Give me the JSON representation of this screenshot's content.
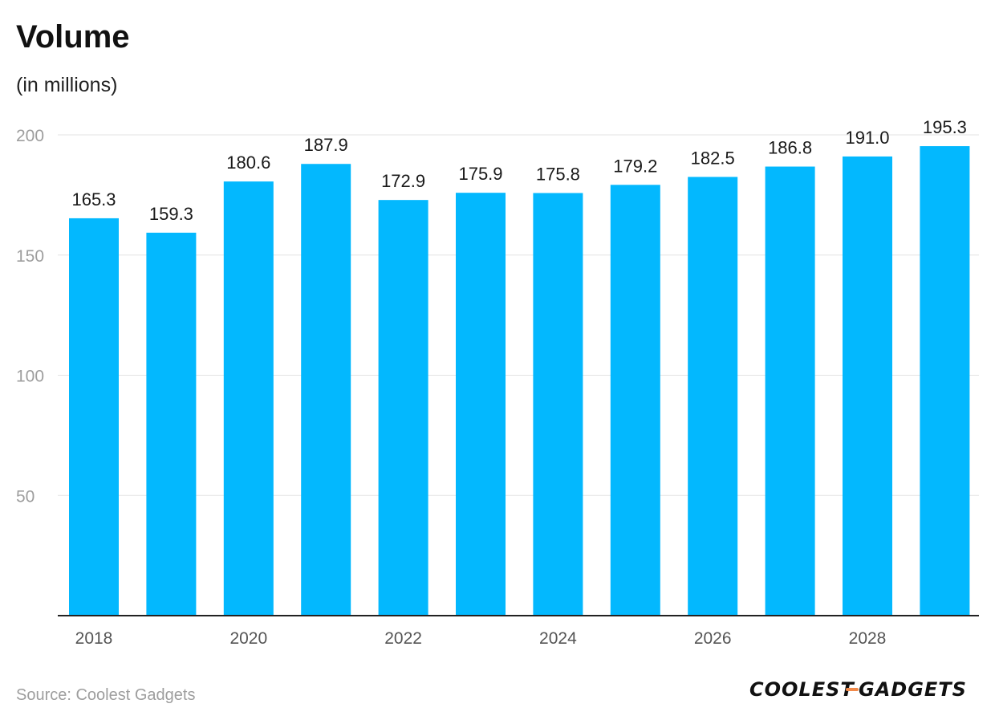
{
  "header": {
    "title": "Volume",
    "subtitle": "(in millions)"
  },
  "footer": {
    "source": "Source: Coolest Gadgets",
    "logo_text": "COOLEST-GADGETS"
  },
  "colors": {
    "bar": "#03b8fe",
    "grid": "#e3e3e3",
    "axis": "#222222",
    "tick_label": "#9e9e9e",
    "x_label": "#555555",
    "value_label": "#1a1a1a",
    "logo_accent": "#f28a4a"
  },
  "chart_data": {
    "type": "bar",
    "title": "Volume",
    "subtitle": "(in millions)",
    "categories": [
      "2018",
      "2019",
      "2020",
      "2021",
      "2022",
      "2023",
      "2024",
      "2025",
      "2026",
      "2027",
      "2028",
      "2029"
    ],
    "visible_x_labels": [
      "2018",
      "2020",
      "2022",
      "2024",
      "2026",
      "2028"
    ],
    "values": [
      165.3,
      159.3,
      180.6,
      187.9,
      172.9,
      175.9,
      175.8,
      179.2,
      182.5,
      186.8,
      191.0,
      195.3
    ],
    "value_labels": [
      "165.3",
      "159.3",
      "180.6",
      "187.9",
      "172.9",
      "175.9",
      "175.8",
      "179.2",
      "182.5",
      "186.8",
      "191.0",
      "195.3"
    ],
    "y_ticks": [
      50,
      100,
      150,
      200
    ],
    "ylim": [
      0,
      200
    ],
    "grid": true,
    "legend": "none"
  }
}
